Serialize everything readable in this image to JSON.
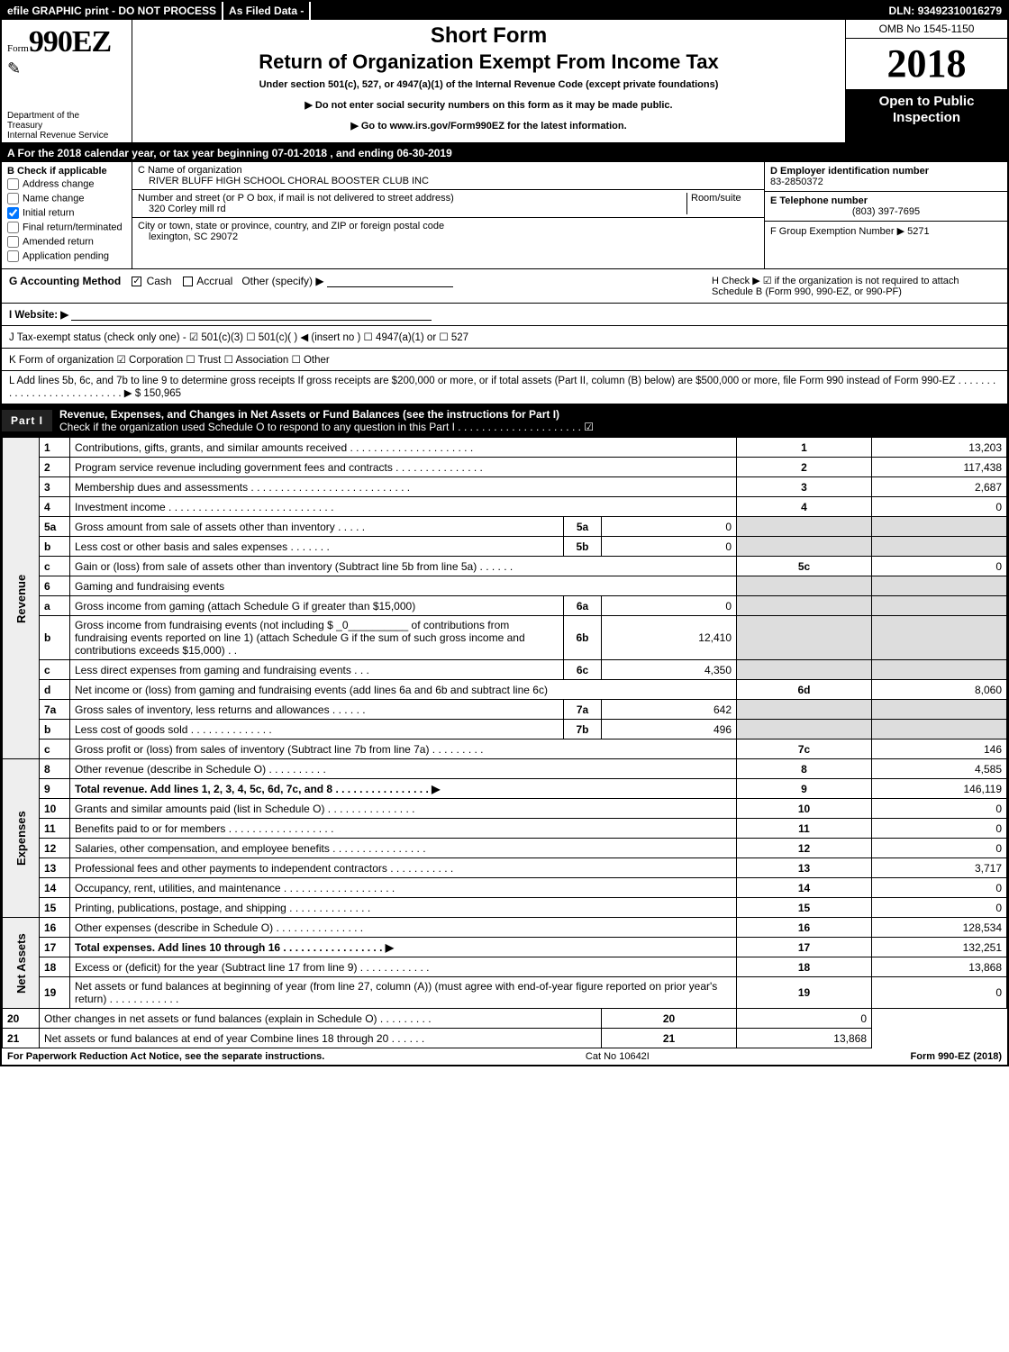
{
  "topbar": {
    "efile": "efile GRAPHIC print - DO NOT PROCESS",
    "asfiled": "As Filed Data -",
    "dln_label": "DLN:",
    "dln": "93492310016279"
  },
  "header": {
    "form_label": "Form",
    "form_num": "990EZ",
    "dept1": "Department of the",
    "dept2": "Treasury",
    "dept3": "Internal Revenue Service",
    "title1": "Short Form",
    "title2": "Return of Organization Exempt From Income Tax",
    "sub": "Under section 501(c), 527, or 4947(a)(1) of the Internal Revenue Code (except private foundations)",
    "arrow1": "▶ Do not enter social security numbers on this form as it may be made public.",
    "arrow2": "▶ Go to www.irs.gov/Form990EZ for the latest information.",
    "omb": "OMB No 1545-1150",
    "year": "2018",
    "open": "Open to Public Inspection"
  },
  "lineA": "A  For the 2018 calendar year, or tax year beginning 07-01-2018            , and ending 06-30-2019",
  "boxB": {
    "title": "B  Check if applicable",
    "items": [
      "Address change",
      "Name change",
      "Initial return",
      "Final return/terminated",
      "Amended return",
      "Application pending"
    ],
    "checked_index": 2
  },
  "boxC": {
    "label": "C Name of organization",
    "name": "RIVER BLUFF HIGH SCHOOL CHORAL BOOSTER CLUB INC",
    "addr_label": "Number and street (or P O box, if mail is not delivered to street address)",
    "room_label": "Room/suite",
    "addr": "320 Corley mill rd",
    "city_label": "City or town, state or province, country, and ZIP or foreign postal code",
    "city": "lexington, SC  29072"
  },
  "boxD": {
    "label": "D Employer identification number",
    "ein": "83-2850372",
    "e_label": "E Telephone number",
    "phone": "(803) 397-7695",
    "f_label": "F Group Exemption Number  ▶",
    "f_val": "5271"
  },
  "lineG": {
    "label": "G Accounting Method",
    "cash": "Cash",
    "accrual": "Accrual",
    "other": "Other (specify) ▶"
  },
  "lineH": "H   Check ▶  ☑ if the organization is not required to attach Schedule B (Form 990, 990-EZ, or 990-PF)",
  "lineI": "I Website: ▶",
  "lineJ": "J Tax-exempt status (check only one) - ☑ 501(c)(3) ☐ 501(c)(  ) ◀ (insert no ) ☐ 4947(a)(1) or ☐ 527",
  "lineK": "K Form of organization    ☑ Corporation  ☐ Trust  ☐ Association  ☐ Other",
  "lineL": "L Add lines 5b, 6c, and 7b to line 9 to determine gross receipts If gross receipts are $200,000 or more, or if total assets (Part II, column (B) below) are $500,000 or more, file Form 990 instead of Form 990-EZ  .  .  .  .  .  .  .  .  .  .  .  .  .  .  .  .  .  .  .  .  .  .  .  .  .  .  .  ▶ $ 150,965",
  "part1": {
    "title": "Part I",
    "heading": "Revenue, Expenses, and Changes in Net Assets or Fund Balances (see the instructions for Part I)",
    "sub": "Check if the organization used Schedule O to respond to any question in this Part I .  .  .  .  .  .  .  .  .  .  .  .  .  .  .  .  .  .  .  .  .  ☑"
  },
  "sections": {
    "revenue": "Revenue",
    "expenses": "Expenses",
    "netassets": "Net Assets"
  },
  "rows": [
    {
      "n": "1",
      "d": "Contributions, gifts, grants, and similar amounts received .  .  .  .  .  .  .  .  .  .  .  .  .  .  .  .  .  .  .  .  .",
      "rc": "1",
      "rv": "13,203"
    },
    {
      "n": "2",
      "d": "Program service revenue including government fees and contracts .  .  .  .  .  .  .  .  .  .  .  .  .  .  .",
      "rc": "2",
      "rv": "117,438"
    },
    {
      "n": "3",
      "d": "Membership dues and assessments .  .  .  .  .  .  .  .  .  .  .  .  .  .  .  .  .  .  .  .  .  .  .  .  .  .  .",
      "rc": "3",
      "rv": "2,687"
    },
    {
      "n": "4",
      "d": "Investment income .  .  .  .  .  .  .  .  .  .  .  .  .  .  .  .  .  .  .  .  .  .  .  .  .  .  .  .",
      "rc": "4",
      "rv": "0"
    },
    {
      "n": "5a",
      "d": "Gross amount from sale of assets other than inventory .  .  .  .  .",
      "sc": "5a",
      "sv": "0",
      "shade": true
    },
    {
      "n": "b",
      "d": "Less cost or other basis and sales expenses .  .  .  .  .  .  .",
      "sc": "5b",
      "sv": "0",
      "shade": true
    },
    {
      "n": "c",
      "d": "Gain or (loss) from sale of assets other than inventory (Subtract line 5b from line 5a) .  .  .  .  .  .",
      "rc": "5c",
      "rv": "0"
    },
    {
      "n": "6",
      "d": "Gaming and fundraising events",
      "shade": true
    },
    {
      "n": "a",
      "d": "Gross income from gaming (attach Schedule G if greater than $15,000)",
      "sc": "6a",
      "sv": "0",
      "shade": true
    },
    {
      "n": "b",
      "d": "Gross income from fundraising events (not including $ _0__________ of contributions from fundraising events reported on line 1) (attach Schedule G if the sum of such gross income and contributions exceeds $15,000)    .  .",
      "sc": "6b",
      "sv": "12,410",
      "shade": true
    },
    {
      "n": "c",
      "d": "Less  direct expenses from gaming and fundraising events     .  .  .",
      "sc": "6c",
      "sv": "4,350",
      "shade": true
    },
    {
      "n": "d",
      "d": "Net income or (loss) from gaming and fundraising events (add lines 6a and 6b and subtract line 6c)",
      "rc": "6d",
      "rv": "8,060"
    },
    {
      "n": "7a",
      "d": "Gross sales of inventory, less returns and allowances .  .  .  .  .  .",
      "sc": "7a",
      "sv": "642",
      "shade": true
    },
    {
      "n": "b",
      "d": "Less cost of goods sold          .  .  .  .  .  .  .  .  .  .  .  .  .  .",
      "sc": "7b",
      "sv": "496",
      "shade": true
    },
    {
      "n": "c",
      "d": "Gross profit or (loss) from sales of inventory (Subtract line 7b from line 7a) .  .  .  .  .  .  .  .  .",
      "rc": "7c",
      "rv": "146"
    },
    {
      "n": "8",
      "d": "Other revenue (describe in Schedule O)                     .  .  .  .  .  .  .  .  .  .",
      "rc": "8",
      "rv": "4,585"
    },
    {
      "n": "9",
      "d": "Total revenue. Add lines 1, 2, 3, 4, 5c, 6d, 7c, and 8  .  .  .  .  .  .  .  .  .  .  .  .  .  .  .  .    ▶",
      "rc": "9",
      "rv": "146,119",
      "bold": true
    },
    {
      "n": "10",
      "d": "Grants and similar amounts paid (list in Schedule O)         .  .  .  .  .  .  .  .  .  .  .  .  .  .  .",
      "rc": "10",
      "rv": "0"
    },
    {
      "n": "11",
      "d": "Benefits paid to or for members              .  .  .  .  .  .  .  .  .  .  .  .  .  .  .  .  .  .",
      "rc": "11",
      "rv": "0"
    },
    {
      "n": "12",
      "d": "Salaries, other compensation, and employee benefits .  .  .  .  .  .  .  .  .  .  .  .  .  .  .  .",
      "rc": "12",
      "rv": "0"
    },
    {
      "n": "13",
      "d": "Professional fees and other payments to independent contractors  .  .  .  .  .  .  .  .  .  .  .",
      "rc": "13",
      "rv": "3,717"
    },
    {
      "n": "14",
      "d": "Occupancy, rent, utilities, and maintenance .  .  .  .  .  .  .  .  .  .  .  .  .  .  .  .  .  .  .",
      "rc": "14",
      "rv": "0"
    },
    {
      "n": "15",
      "d": "Printing, publications, postage, and shipping           .  .  .  .  .  .  .  .  .  .  .  .  .  .",
      "rc": "15",
      "rv": "0"
    },
    {
      "n": "16",
      "d": "Other expenses (describe in Schedule O)            .  .  .  .  .  .  .  .  .  .  .  .  .  .  .",
      "rc": "16",
      "rv": "128,534"
    },
    {
      "n": "17",
      "d": "Total expenses. Add lines 10 through 16       .  .  .  .  .  .  .  .  .  .  .  .  .  .  .  .  .   ▶",
      "rc": "17",
      "rv": "132,251",
      "bold": true
    },
    {
      "n": "18",
      "d": "Excess or (deficit) for the year (Subtract line 17 from line 9)      .  .  .  .  .  .  .  .  .  .  .  .",
      "rc": "18",
      "rv": "13,868"
    },
    {
      "n": "19",
      "d": "Net assets or fund balances at beginning of year (from line 27, column (A)) (must agree with end-of-year figure reported on prior year's return)           .  .  .  .  .  .  .  .  .  .  .  .",
      "rc": "19",
      "rv": "0"
    },
    {
      "n": "20",
      "d": "Other changes in net assets or fund balances (explain in Schedule O)     .  .  .  .  .  .  .  .  .",
      "rc": "20",
      "rv": "0"
    },
    {
      "n": "21",
      "d": "Net assets or fund balances at end of year  Combine lines 18 through 20         .  .  .  .  .  .",
      "rc": "21",
      "rv": "13,868"
    }
  ],
  "footer": {
    "left": "For Paperwork Reduction Act Notice, see the separate instructions.",
    "mid": "Cat No 10642I",
    "right": "Form 990-EZ (2018)"
  }
}
